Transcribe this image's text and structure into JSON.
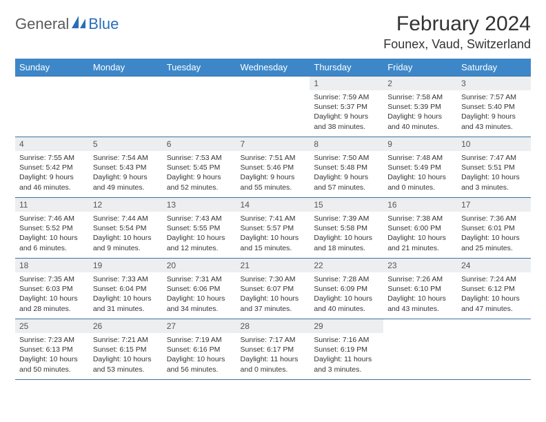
{
  "logo": {
    "text1": "General",
    "text2": "Blue"
  },
  "title": "February 2024",
  "location": "Founex, Vaud, Switzerland",
  "colors": {
    "header_bg": "#3d87c9",
    "header_fg": "#ffffff",
    "daynum_bg": "#eceeef",
    "border": "#3d6fa3",
    "logo_gray": "#5a5a5a",
    "logo_blue": "#2a6db8"
  },
  "weekdays": [
    "Sunday",
    "Monday",
    "Tuesday",
    "Wednesday",
    "Thursday",
    "Friday",
    "Saturday"
  ],
  "weeks": [
    [
      null,
      null,
      null,
      null,
      {
        "n": "1",
        "sr": "7:59 AM",
        "ss": "5:37 PM",
        "dl": "9 hours and 38 minutes."
      },
      {
        "n": "2",
        "sr": "7:58 AM",
        "ss": "5:39 PM",
        "dl": "9 hours and 40 minutes."
      },
      {
        "n": "3",
        "sr": "7:57 AM",
        "ss": "5:40 PM",
        "dl": "9 hours and 43 minutes."
      }
    ],
    [
      {
        "n": "4",
        "sr": "7:55 AM",
        "ss": "5:42 PM",
        "dl": "9 hours and 46 minutes."
      },
      {
        "n": "5",
        "sr": "7:54 AM",
        "ss": "5:43 PM",
        "dl": "9 hours and 49 minutes."
      },
      {
        "n": "6",
        "sr": "7:53 AM",
        "ss": "5:45 PM",
        "dl": "9 hours and 52 minutes."
      },
      {
        "n": "7",
        "sr": "7:51 AM",
        "ss": "5:46 PM",
        "dl": "9 hours and 55 minutes."
      },
      {
        "n": "8",
        "sr": "7:50 AM",
        "ss": "5:48 PM",
        "dl": "9 hours and 57 minutes."
      },
      {
        "n": "9",
        "sr": "7:48 AM",
        "ss": "5:49 PM",
        "dl": "10 hours and 0 minutes."
      },
      {
        "n": "10",
        "sr": "7:47 AM",
        "ss": "5:51 PM",
        "dl": "10 hours and 3 minutes."
      }
    ],
    [
      {
        "n": "11",
        "sr": "7:46 AM",
        "ss": "5:52 PM",
        "dl": "10 hours and 6 minutes."
      },
      {
        "n": "12",
        "sr": "7:44 AM",
        "ss": "5:54 PM",
        "dl": "10 hours and 9 minutes."
      },
      {
        "n": "13",
        "sr": "7:43 AM",
        "ss": "5:55 PM",
        "dl": "10 hours and 12 minutes."
      },
      {
        "n": "14",
        "sr": "7:41 AM",
        "ss": "5:57 PM",
        "dl": "10 hours and 15 minutes."
      },
      {
        "n": "15",
        "sr": "7:39 AM",
        "ss": "5:58 PM",
        "dl": "10 hours and 18 minutes."
      },
      {
        "n": "16",
        "sr": "7:38 AM",
        "ss": "6:00 PM",
        "dl": "10 hours and 21 minutes."
      },
      {
        "n": "17",
        "sr": "7:36 AM",
        "ss": "6:01 PM",
        "dl": "10 hours and 25 minutes."
      }
    ],
    [
      {
        "n": "18",
        "sr": "7:35 AM",
        "ss": "6:03 PM",
        "dl": "10 hours and 28 minutes."
      },
      {
        "n": "19",
        "sr": "7:33 AM",
        "ss": "6:04 PM",
        "dl": "10 hours and 31 minutes."
      },
      {
        "n": "20",
        "sr": "7:31 AM",
        "ss": "6:06 PM",
        "dl": "10 hours and 34 minutes."
      },
      {
        "n": "21",
        "sr": "7:30 AM",
        "ss": "6:07 PM",
        "dl": "10 hours and 37 minutes."
      },
      {
        "n": "22",
        "sr": "7:28 AM",
        "ss": "6:09 PM",
        "dl": "10 hours and 40 minutes."
      },
      {
        "n": "23",
        "sr": "7:26 AM",
        "ss": "6:10 PM",
        "dl": "10 hours and 43 minutes."
      },
      {
        "n": "24",
        "sr": "7:24 AM",
        "ss": "6:12 PM",
        "dl": "10 hours and 47 minutes."
      }
    ],
    [
      {
        "n": "25",
        "sr": "7:23 AM",
        "ss": "6:13 PM",
        "dl": "10 hours and 50 minutes."
      },
      {
        "n": "26",
        "sr": "7:21 AM",
        "ss": "6:15 PM",
        "dl": "10 hours and 53 minutes."
      },
      {
        "n": "27",
        "sr": "7:19 AM",
        "ss": "6:16 PM",
        "dl": "10 hours and 56 minutes."
      },
      {
        "n": "28",
        "sr": "7:17 AM",
        "ss": "6:17 PM",
        "dl": "11 hours and 0 minutes."
      },
      {
        "n": "29",
        "sr": "7:16 AM",
        "ss": "6:19 PM",
        "dl": "11 hours and 3 minutes."
      },
      null,
      null
    ]
  ]
}
